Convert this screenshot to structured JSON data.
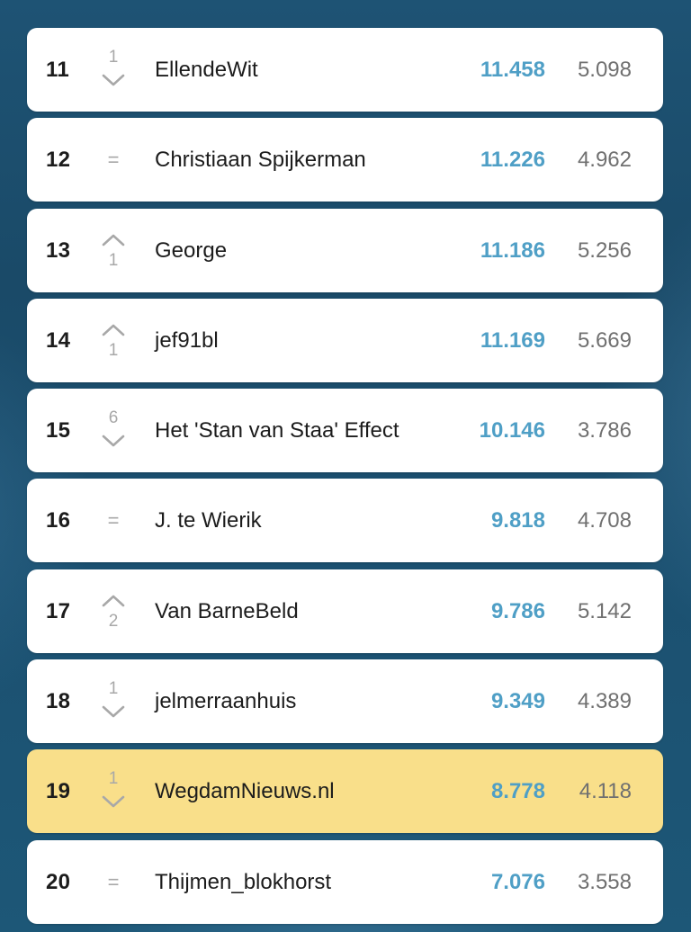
{
  "colors": {
    "card": "#ffffff",
    "highlight": "#f9df8a",
    "score_blue": "#4f9fc6",
    "muted_gray": "#a8a8a8",
    "text_dark": "#1c1c1c",
    "background": "#1b4d6c"
  },
  "rows": [
    {
      "rank": "11",
      "trend": "down",
      "change": "1",
      "name": "EllendeWit",
      "score": "11.458",
      "secondary": "5.098",
      "highlighted": false
    },
    {
      "rank": "12",
      "trend": "same",
      "change": "=",
      "name": "Christiaan Spijkerman",
      "score": "11.226",
      "secondary": "4.962",
      "highlighted": false
    },
    {
      "rank": "13",
      "trend": "up",
      "change": "1",
      "name": "George",
      "score": "11.186",
      "secondary": "5.256",
      "highlighted": false
    },
    {
      "rank": "14",
      "trend": "up",
      "change": "1",
      "name": "jef91bl",
      "score": "11.169",
      "secondary": "5.669",
      "highlighted": false
    },
    {
      "rank": "15",
      "trend": "down",
      "change": "6",
      "name": "Het 'Stan van Staa' Effect",
      "score": "10.146",
      "secondary": "3.786",
      "highlighted": false
    },
    {
      "rank": "16",
      "trend": "same",
      "change": "=",
      "name": "J. te Wierik",
      "score": "9.818",
      "secondary": "4.708",
      "highlighted": false
    },
    {
      "rank": "17",
      "trend": "up",
      "change": "2",
      "name": "Van BarneBeld",
      "score": "9.786",
      "secondary": "5.142",
      "highlighted": false
    },
    {
      "rank": "18",
      "trend": "down",
      "change": "1",
      "name": "jelmerraanhuis",
      "score": "9.349",
      "secondary": "4.389",
      "highlighted": false
    },
    {
      "rank": "19",
      "trend": "down",
      "change": "1",
      "name": "WegdamNieuws.nl",
      "score": "8.778",
      "secondary": "4.118",
      "highlighted": true
    },
    {
      "rank": "20",
      "trend": "same",
      "change": "=",
      "name": "Thijmen_blokhorst",
      "score": "7.076",
      "secondary": "3.558",
      "highlighted": false
    }
  ]
}
